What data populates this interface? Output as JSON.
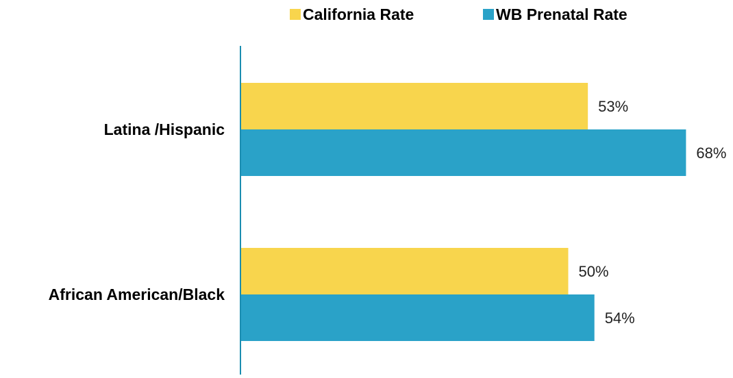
{
  "chart_data": {
    "type": "bar",
    "orientation": "horizontal",
    "categories": [
      "Latina /Hispanic",
      "African American/Black"
    ],
    "series": [
      {
        "name": "California Rate",
        "values": [
          53,
          50
        ],
        "labels": [
          "53%",
          "50%"
        ],
        "color": "#F8D54D"
      },
      {
        "name": "WB Prenatal Rate",
        "values": [
          68,
          54
        ],
        "labels": [
          "68%",
          "54%"
        ],
        "color": "#2AA2C8"
      }
    ],
    "value_unit": "%",
    "xlim": [
      0,
      100
    ],
    "grid": false,
    "legend": "top",
    "axis_color": "#1B8DB0"
  }
}
